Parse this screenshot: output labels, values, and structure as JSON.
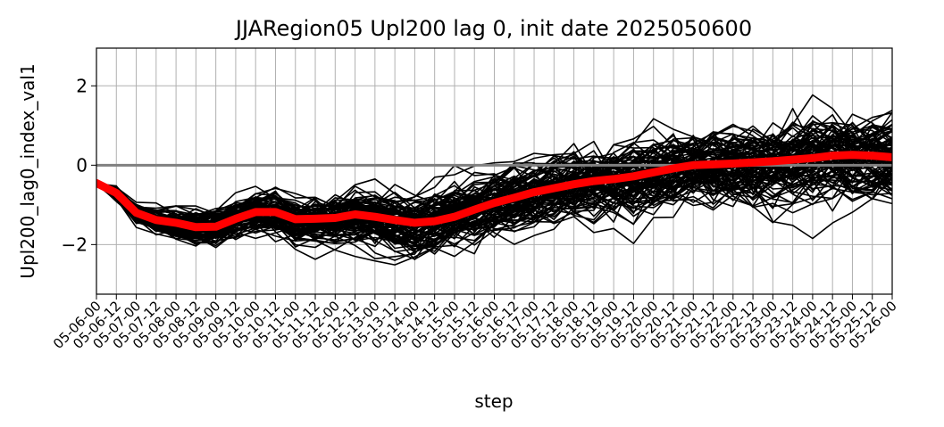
{
  "chart_data": {
    "type": "line",
    "title": "JJARegion05 Upl200 lag 0, init date 2025050600",
    "xlabel": "step",
    "ylabel": "Upl200_lag0_index_val1",
    "categories": [
      "05-06-00",
      "05-06-12",
      "05-07-00",
      "05-07-12",
      "05-08-00",
      "05-08-12",
      "05-09-00",
      "05-09-12",
      "05-10-00",
      "05-10-12",
      "05-11-00",
      "05-11-12",
      "05-12-00",
      "05-12-12",
      "05-13-00",
      "05-13-12",
      "05-14-00",
      "05-14-12",
      "05-15-00",
      "05-15-12",
      "05-16-00",
      "05-16-12",
      "05-17-00",
      "05-17-12",
      "05-18-00",
      "05-18-12",
      "05-19-00",
      "05-19-12",
      "05-20-00",
      "05-20-12",
      "05-21-00",
      "05-21-12",
      "05-22-00",
      "05-22-12",
      "05-23-00",
      "05-23-12",
      "05-24-00",
      "05-24-12",
      "05-25-00",
      "05-25-12",
      "05-26-00"
    ],
    "ylim": [
      -3.25,
      2.95
    ],
    "yticks": [
      -2,
      0,
      2
    ],
    "ytick_labels": [
      "−2",
      "0",
      "2"
    ],
    "grid": true,
    "zero_line_color": "#808080",
    "grid_color": "#b0b0b0",
    "member_color": "#000000",
    "mean_color": "#ff0000",
    "ensemble": {
      "members": 100,
      "seed": 42,
      "spread_start": 0.05,
      "spread_growth": 0.11
    },
    "series": [
      {
        "values": [
          -0.45,
          -0.7,
          -1.2,
          -1.38,
          -1.45,
          -1.56,
          -1.55,
          -1.35,
          -1.18,
          -1.18,
          -1.36,
          -1.35,
          -1.33,
          -1.24,
          -1.3,
          -1.38,
          -1.45,
          -1.41,
          -1.3,
          -1.12,
          -0.95,
          -0.82,
          -0.68,
          -0.58,
          -0.48,
          -0.4,
          -0.35,
          -0.28,
          -0.18,
          -0.08,
          0.0,
          0.02,
          0.04,
          0.07,
          0.1,
          0.14,
          0.18,
          0.24,
          0.26,
          0.24,
          0.2
        ]
      }
    ]
  }
}
